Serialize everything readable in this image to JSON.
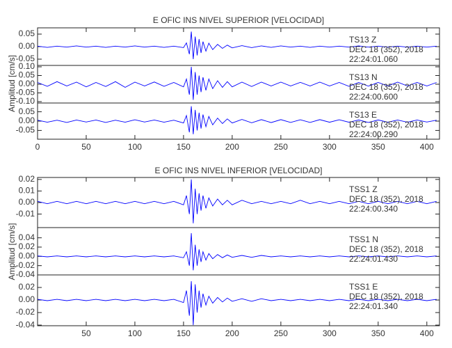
{
  "chart_data": [
    {
      "type": "line",
      "title": "E  OFIC INS NIVEL SUPERIOR [VELOCIDAD]",
      "y_label": "Amplitud [cm/s]",
      "xlim": [
        0,
        413
      ],
      "xticks": [
        0,
        50,
        100,
        150,
        200,
        250,
        300,
        350,
        400
      ],
      "x": [
        0,
        10,
        20,
        30,
        40,
        50,
        60,
        70,
        80,
        90,
        100,
        110,
        120,
        130,
        140,
        150,
        153,
        156,
        158,
        160,
        162,
        164,
        166,
        168,
        170,
        173,
        176,
        180,
        185,
        190,
        195,
        200,
        210,
        220,
        230,
        240,
        250,
        260,
        270,
        280,
        290,
        300,
        310,
        320,
        330,
        340,
        350,
        360,
        370,
        380,
        390,
        400,
        410
      ],
      "panels": [
        {
          "ylim": [
            -0.075,
            0.075
          ],
          "yticks": [
            {
              "value": 0.05,
              "label": "0.05"
            },
            {
              "value": 0,
              "label": "0.00"
            },
            {
              "value": -0.05,
              "label": "-0.05"
            }
          ],
          "label": [
            "TS13   Z",
            "DEC 18 (352), 2018",
            "22:24:01.060"
          ],
          "color": "#0000ff",
          "values": [
            0.002,
            -0.003,
            0.002,
            -0.002,
            0.003,
            -0.002,
            0.002,
            -0.003,
            0.002,
            -0.002,
            0.003,
            -0.002,
            0.002,
            -0.003,
            0.002,
            -0.004,
            0.015,
            -0.03,
            0.06,
            -0.05,
            0.04,
            -0.035,
            0.03,
            -0.025,
            0.02,
            -0.018,
            0.014,
            -0.012,
            0.009,
            -0.007,
            0.006,
            -0.005,
            0.004,
            -0.004,
            0.003,
            -0.003,
            0.003,
            -0.002,
            0.002,
            -0.003,
            0.002,
            -0.002,
            0.002,
            -0.002,
            0.003,
            -0.002,
            0.002,
            -0.002,
            0.002,
            -0.002,
            0.002,
            -0.002,
            0.002
          ]
        },
        {
          "ylim": [
            -0.108,
            0.108
          ],
          "yticks": [
            {
              "value": 0.1,
              "label": "0.10"
            },
            {
              "value": 0.05,
              "label": "0.05"
            },
            {
              "value": 0,
              "label": "0.00"
            },
            {
              "value": -0.05,
              "label": "-0.05"
            },
            {
              "value": -0.1,
              "label": "-0.10"
            }
          ],
          "label": [
            "TS13   N",
            "DEC 18 (352), 2018",
            "22:24:00.600"
          ],
          "color": "#0000ff",
          "values": [
            0.01,
            -0.012,
            0.015,
            -0.01,
            0.012,
            -0.015,
            0.01,
            -0.013,
            0.015,
            -0.018,
            0.012,
            -0.01,
            0.013,
            -0.012,
            0.01,
            -0.015,
            0.03,
            -0.06,
            0.1,
            -0.09,
            0.07,
            -0.06,
            0.05,
            -0.045,
            0.04,
            -0.035,
            0.03,
            -0.025,
            0.02,
            -0.018,
            0.015,
            -0.015,
            0.012,
            -0.013,
            0.012,
            -0.01,
            0.012,
            -0.01,
            0.011,
            -0.01,
            0.012,
            -0.01,
            0.01,
            -0.012,
            0.01,
            -0.011,
            0.01,
            -0.01,
            0.012,
            -0.01,
            0.01,
            -0.01,
            0.01
          ]
        },
        {
          "ylim": [
            -0.097,
            0.097
          ],
          "yticks": [
            {
              "value": 0.05,
              "label": "0.05"
            },
            {
              "value": 0,
              "label": "0.00"
            },
            {
              "value": -0.05,
              "label": "-0.05"
            }
          ],
          "label": [
            "TS13   E",
            "DEC 18 (352), 2018",
            "22:24:00.290"
          ],
          "color": "#0000ff",
          "values": [
            0.005,
            -0.006,
            0.005,
            -0.007,
            0.006,
            -0.005,
            0.006,
            -0.007,
            0.005,
            -0.006,
            0.007,
            -0.005,
            0.006,
            -0.006,
            0.005,
            -0.01,
            0.03,
            -0.06,
            0.08,
            -0.07,
            0.06,
            -0.05,
            0.045,
            -0.04,
            0.035,
            -0.03,
            0.025,
            -0.02,
            0.016,
            -0.013,
            0.012,
            -0.01,
            0.009,
            -0.009,
            0.008,
            -0.008,
            0.008,
            -0.007,
            0.007,
            -0.007,
            0.008,
            -0.006,
            0.007,
            -0.006,
            0.006,
            -0.007,
            0.006,
            -0.006,
            0.006,
            -0.006,
            0.006,
            -0.005,
            0.005
          ]
        }
      ]
    },
    {
      "type": "line",
      "title": "E  OFIC INS NIVEL INFERIOR [VELOCIDAD]",
      "y_label": "Amplitud [cm/s]",
      "xlim": [
        0,
        413
      ],
      "xticks": [
        50,
        100,
        150,
        200,
        250,
        300,
        350,
        400
      ],
      "x": [
        0,
        10,
        20,
        30,
        40,
        50,
        60,
        70,
        80,
        90,
        100,
        110,
        120,
        130,
        140,
        150,
        153,
        156,
        158,
        160,
        162,
        164,
        166,
        168,
        170,
        173,
        176,
        180,
        185,
        190,
        195,
        200,
        210,
        220,
        230,
        240,
        250,
        260,
        270,
        280,
        290,
        300,
        310,
        320,
        330,
        340,
        350,
        360,
        370,
        380,
        390,
        400,
        410
      ],
      "panels": [
        {
          "ylim": [
            -0.0217,
            0.0217
          ],
          "yticks": [
            {
              "value": 0.02,
              "label": "0.02"
            },
            {
              "value": 0.01,
              "label": "0.01"
            },
            {
              "value": 0,
              "label": "0.00"
            },
            {
              "value": -0.01,
              "label": "-0.01"
            }
          ],
          "label": [
            "TSS1   Z",
            "DEC 18 (352), 2018",
            "22:24:00.340"
          ],
          "color": "#0000ff",
          "values": [
            0.001,
            -0.001,
            0.001,
            -0.001,
            0.001,
            -0.001,
            0.001,
            -0.001,
            0.001,
            -0.001,
            0.001,
            -0.001,
            0.001,
            -0.001,
            0.001,
            -0.002,
            0.006,
            -0.01,
            0.02,
            -0.018,
            0.012,
            -0.01,
            0.008,
            -0.007,
            0.006,
            -0.005,
            0.004,
            -0.003,
            0.003,
            -0.002,
            0.002,
            -0.002,
            0.002,
            -0.001,
            0.001,
            -0.001,
            0.001,
            -0.001,
            0.002,
            -0.001,
            0.001,
            -0.001,
            0.001,
            -0.001,
            0.001,
            -0.001,
            0.001,
            -0.001,
            0.001,
            -0.001,
            0.001,
            -0.001,
            0.001
          ]
        },
        {
          "ylim": [
            -0.04,
            0.062
          ],
          "yticks": [
            {
              "value": 0.04,
              "label": "0.04"
            },
            {
              "value": 0.02,
              "label": "0.02"
            },
            {
              "value": 0,
              "label": "0.00"
            },
            {
              "value": -0.02,
              "label": "-0.02"
            },
            {
              "value": -0.04,
              "label": "-0.04"
            }
          ],
          "label": [
            "TSS1   N",
            "DEC 18 (352), 2018",
            "22:24:01.430"
          ],
          "color": "#0000ff",
          "values": [
            0.001,
            -0.001,
            0.001,
            -0.001,
            0.001,
            -0.001,
            0.001,
            -0.001,
            0.001,
            -0.001,
            0.001,
            -0.001,
            0.001,
            -0.001,
            0.001,
            -0.003,
            0.01,
            -0.02,
            0.05,
            -0.03,
            0.025,
            -0.02,
            0.015,
            -0.012,
            0.01,
            -0.008,
            0.006,
            -0.005,
            0.004,
            -0.003,
            0.003,
            -0.002,
            0.002,
            -0.002,
            0.002,
            -0.001,
            0.001,
            -0.001,
            0.001,
            -0.001,
            0.001,
            -0.001,
            0.001,
            -0.001,
            0.001,
            -0.001,
            0.001,
            -0.001,
            0.001,
            -0.001,
            0.001,
            -0.001,
            0.001
          ]
        },
        {
          "ylim": [
            -0.041,
            0.04
          ],
          "yticks": [
            {
              "value": 0.02,
              "label": "0.02"
            },
            {
              "value": 0,
              "label": "0.00"
            },
            {
              "value": -0.02,
              "label": "-0.02"
            },
            {
              "value": -0.04,
              "label": "-0.04"
            }
          ],
          "label": [
            "TSS1   E",
            "DEC 18 (352), 2018",
            "22:24:01.340"
          ],
          "color": "#0000ff",
          "values": [
            0.001,
            -0.001,
            0.001,
            -0.001,
            0.001,
            -0.001,
            0.001,
            -0.001,
            0.001,
            -0.001,
            0.001,
            -0.001,
            0.001,
            -0.001,
            0.001,
            -0.004,
            0.015,
            -0.025,
            0.03,
            -0.04,
            0.025,
            -0.02,
            0.015,
            -0.012,
            0.01,
            -0.008,
            0.006,
            -0.005,
            0.004,
            -0.003,
            0.003,
            -0.002,
            0.002,
            -0.002,
            0.002,
            -0.001,
            0.001,
            -0.001,
            0.001,
            -0.001,
            0.001,
            -0.001,
            0.001,
            -0.001,
            0.001,
            -0.001,
            0.001,
            -0.001,
            0.001,
            -0.001,
            0.001,
            -0.001,
            0.001
          ]
        }
      ]
    }
  ]
}
